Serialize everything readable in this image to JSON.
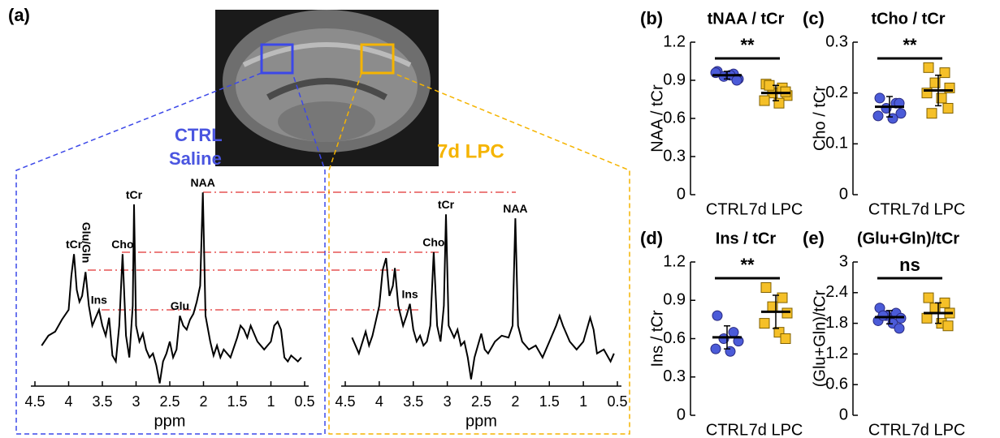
{
  "panel_a": {
    "label": "(a)",
    "ctrl_group": [
      "CTRL",
      "Saline"
    ],
    "lpc_group": "7d LPC"
  },
  "chart_data": [
    {
      "type": "spectrum",
      "xlabel": "ppm",
      "xlim": [
        4.5,
        0.5
      ],
      "xticks": [
        4.5,
        4,
        3.5,
        3,
        2.5,
        2,
        1.5,
        1,
        0.5
      ],
      "ylim": [
        0,
        100
      ],
      "color": "#000000",
      "x": [
        4.4,
        4.3,
        4.2,
        4.1,
        4.0,
        3.96,
        3.92,
        3.88,
        3.84,
        3.8,
        3.75,
        3.7,
        3.65,
        3.6,
        3.55,
        3.5,
        3.45,
        3.4,
        3.35,
        3.3,
        3.25,
        3.2,
        3.15,
        3.1,
        3.05,
        3.03,
        3.0,
        2.95,
        2.9,
        2.85,
        2.8,
        2.75,
        2.7,
        2.65,
        2.6,
        2.55,
        2.5,
        2.45,
        2.4,
        2.35,
        2.3,
        2.25,
        2.2,
        2.15,
        2.1,
        2.05,
        2.01,
        1.97,
        1.9,
        1.85,
        1.8,
        1.75,
        1.7,
        1.6,
        1.5,
        1.45,
        1.4,
        1.35,
        1.3,
        1.2,
        1.1,
        1.0,
        0.95,
        0.9,
        0.85,
        0.8,
        0.75,
        0.7,
        0.6,
        0.55
      ],
      "values": [
        20,
        25,
        27,
        33,
        38,
        55,
        66,
        48,
        42,
        45,
        57,
        40,
        30,
        34,
        38,
        30,
        25,
        34,
        15,
        12,
        30,
        66,
        25,
        14,
        40,
        91,
        30,
        22,
        26,
        18,
        14,
        16,
        10,
        1,
        12,
        16,
        22,
        14,
        18,
        35,
        30,
        28,
        33,
        36,
        42,
        50,
        97,
        35,
        22,
        15,
        20,
        14,
        18,
        14,
        24,
        30,
        28,
        24,
        30,
        22,
        18,
        22,
        30,
        32,
        28,
        14,
        12,
        15,
        12,
        14
      ],
      "annotations": [
        {
          "text": "tCr",
          "x": 3.92
        },
        {
          "text": "Glu/Gln",
          "x": 3.75
        },
        {
          "text": "Cho",
          "x": 3.2
        },
        {
          "text": "Ins",
          "x": 3.55
        },
        {
          "text": "tCr",
          "x": 3.03
        },
        {
          "text": "Glu",
          "x": 2.35
        },
        {
          "text": "NAA",
          "x": 2.01
        }
      ]
    },
    {
      "type": "spectrum",
      "xlabel": "ppm",
      "xlim": [
        4.5,
        0.5
      ],
      "xticks": [
        4.5,
        4,
        3.5,
        3,
        2.5,
        2,
        1.5,
        1,
        0.5
      ],
      "ylim": [
        0,
        100
      ],
      "color": "#000000",
      "x": [
        4.4,
        4.3,
        4.2,
        4.15,
        4.1,
        4.0,
        3.95,
        3.9,
        3.85,
        3.8,
        3.77,
        3.72,
        3.65,
        3.6,
        3.55,
        3.5,
        3.45,
        3.4,
        3.35,
        3.3,
        3.25,
        3.2,
        3.15,
        3.1,
        3.05,
        3.02,
        2.98,
        2.9,
        2.85,
        2.8,
        2.75,
        2.7,
        2.65,
        2.6,
        2.55,
        2.5,
        2.45,
        2.4,
        2.3,
        2.2,
        2.1,
        2.04,
        2.0,
        1.96,
        1.9,
        1.8,
        1.7,
        1.6,
        1.5,
        1.4,
        1.35,
        1.3,
        1.2,
        1.1,
        1.0,
        0.95,
        0.9,
        0.85,
        0.8,
        0.7,
        0.6,
        0.55
      ],
      "values": [
        24,
        16,
        27,
        20,
        25,
        40,
        58,
        64,
        45,
        50,
        59,
        40,
        30,
        35,
        41,
        28,
        22,
        25,
        20,
        22,
        30,
        67,
        30,
        22,
        40,
        86,
        30,
        24,
        28,
        20,
        22,
        14,
        3,
        14,
        20,
        26,
        18,
        16,
        22,
        25,
        24,
        30,
        84,
        30,
        22,
        18,
        20,
        14,
        22,
        30,
        35,
        30,
        22,
        18,
        22,
        28,
        34,
        28,
        16,
        18,
        12,
        16
      ],
      "annotations": [
        {
          "text": "Cho",
          "x": 3.2
        },
        {
          "text": "Ins",
          "x": 3.55
        },
        {
          "text": "tCr",
          "x": 3.02
        },
        {
          "text": "NAA",
          "x": 2.0
        }
      ]
    },
    {
      "type": "dot",
      "panel": "(b)",
      "title": "tNAA / tCr",
      "ylabel": "NAA / tCr",
      "categories": [
        "CTRL",
        "7d LPC"
      ],
      "ylim": [
        0,
        1.2
      ],
      "yticks": [
        0,
        0.3,
        0.6,
        0.9,
        1.2
      ],
      "significance": "**",
      "groups": [
        {
          "color": "#4b5bd8",
          "marker": "circle",
          "values": [
            0.97,
            0.95,
            0.93,
            0.91,
            0.96,
            0.94,
            0.9
          ],
          "mean": 0.94,
          "sd": 0.03
        },
        {
          "color": "#f5c028",
          "marker": "square",
          "values": [
            0.87,
            0.84,
            0.8,
            0.78,
            0.74,
            0.72,
            0.81,
            0.86
          ],
          "mean": 0.8,
          "sd": 0.06
        }
      ]
    },
    {
      "type": "dot",
      "panel": "(c)",
      "title": "tCho / tCr",
      "ylabel": "Cho / tCr",
      "categories": [
        "CTRL",
        "7d LPC"
      ],
      "ylim": [
        0,
        0.3
      ],
      "yticks": [
        0,
        0.1,
        0.2,
        0.3
      ],
      "significance": "**",
      "groups": [
        {
          "color": "#4b5bd8",
          "marker": "circle",
          "values": [
            0.19,
            0.18,
            0.17,
            0.16,
            0.155,
            0.15,
            0.18
          ],
          "mean": 0.173,
          "sd": 0.02
        },
        {
          "color": "#f5c028",
          "marker": "square",
          "values": [
            0.25,
            0.24,
            0.22,
            0.21,
            0.2,
            0.19,
            0.17,
            0.16
          ],
          "mean": 0.205,
          "sd": 0.03
        }
      ]
    },
    {
      "type": "dot",
      "panel": "(d)",
      "title": "Ins / tCr",
      "ylabel": "Ins / tCr",
      "categories": [
        "CTRL",
        "7d LPC"
      ],
      "ylim": [
        0,
        1.2
      ],
      "yticks": [
        0,
        0.3,
        0.6,
        0.9,
        1.2
      ],
      "significance": "**",
      "groups": [
        {
          "color": "#4b5bd8",
          "marker": "circle",
          "values": [
            0.78,
            0.65,
            0.6,
            0.58,
            0.52,
            0.5
          ],
          "mean": 0.61,
          "sd": 0.09
        },
        {
          "color": "#f5c028",
          "marker": "square",
          "values": [
            1.0,
            0.92,
            0.85,
            0.8,
            0.72,
            0.65,
            0.6
          ],
          "mean": 0.81,
          "sd": 0.13
        }
      ]
    },
    {
      "type": "dot",
      "panel": "(e)",
      "title": "(Glu+Gln)/tCr",
      "ylabel": "(Glu+Gln)/tCr",
      "categories": [
        "CTRL",
        "7d LPC"
      ],
      "ylim": [
        0,
        3
      ],
      "yticks": [
        0,
        0.6,
        1.2,
        1.8,
        2.4,
        3
      ],
      "significance": "ns",
      "groups": [
        {
          "color": "#4b5bd8",
          "marker": "circle",
          "values": [
            2.1,
            2.0,
            1.95,
            1.9,
            1.85,
            1.8,
            1.7,
            1.95
          ],
          "mean": 1.92,
          "sd": 0.13
        },
        {
          "color": "#f5c028",
          "marker": "square",
          "values": [
            2.3,
            2.2,
            2.1,
            2.0,
            1.9,
            1.8,
            1.75
          ],
          "mean": 2.0,
          "sd": 0.2
        }
      ]
    }
  ]
}
